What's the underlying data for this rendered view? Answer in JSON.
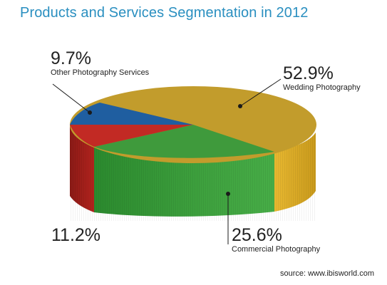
{
  "chart_data": {
    "type": "pie",
    "title": "Products and Services Segmentation in 2012",
    "slices": [
      {
        "label": "Wedding Photography",
        "value": 52.9,
        "display": "52.9%",
        "color": "#c09a2a"
      },
      {
        "label": "Commercial Photography",
        "value": 25.6,
        "display": "25.6%",
        "color": "#3a9a3a"
      },
      {
        "label": "",
        "value": 11.2,
        "display": "11.2%",
        "color": "#c02a24"
      },
      {
        "label": "Other Photography Services",
        "value": 9.7,
        "display": "9.7%",
        "color": "#1f5fa0"
      }
    ],
    "source": "source: www.ibisworld.com"
  }
}
